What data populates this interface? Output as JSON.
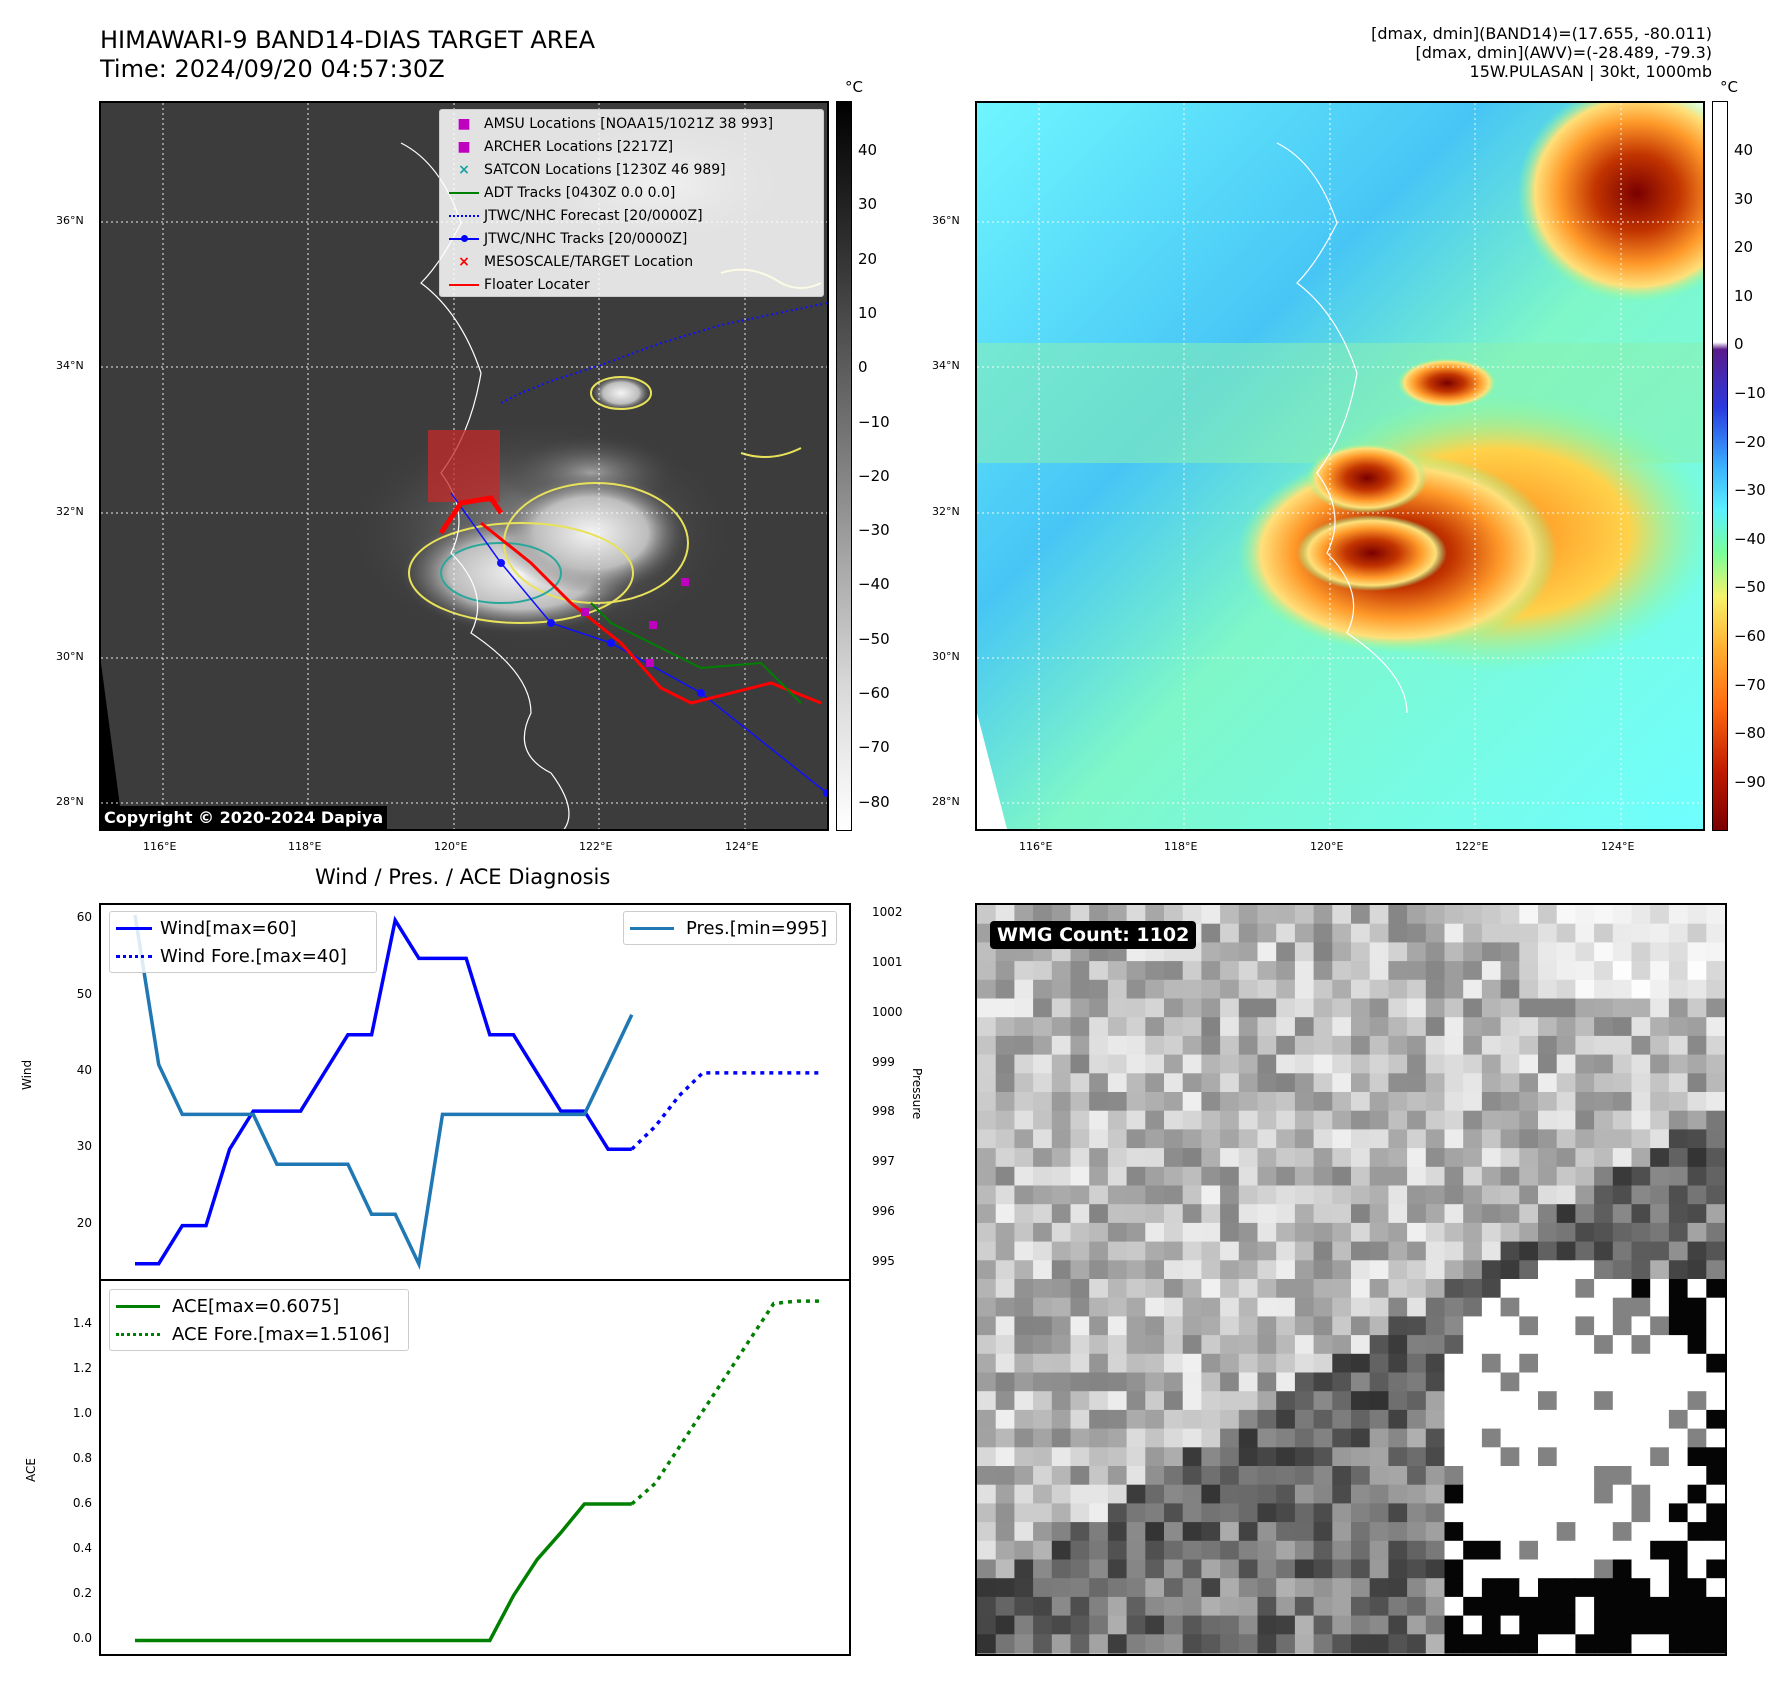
{
  "header": {
    "title_line1": "HIMAWARI-9 BAND14-DIAS TARGET AREA",
    "title_line2": "Time: 2024/09/20 04:57:30Z",
    "right_line1": "[dmax, dmin](BAND14)=(17.655, -80.011)",
    "right_line2": "[dmax, dmin](AWV)=(-28.489, -79.3)",
    "right_line3": "15W.PULASAN | 30kt, 1000mb"
  },
  "map": {
    "lat_labels": [
      "36°N",
      "34°N",
      "32°N",
      "30°N",
      "28°N"
    ],
    "lon_labels": [
      "116°E",
      "118°E",
      "120°E",
      "122°E",
      "124°E"
    ],
    "copyright": "Copyright © 2020-2024 Dapiya"
  },
  "legend_map": [
    {
      "label": "AMSU Locations [NOAA15/1021Z 38 993]",
      "color": "#bf00bf",
      "kind": "square"
    },
    {
      "label": "ARCHER Locations [2217Z]",
      "color": "#bf00bf",
      "kind": "square"
    },
    {
      "label": "SATCON Locations [1230Z 46 989]",
      "color": "#17a2a2",
      "kind": "x"
    },
    {
      "label": "ADT Tracks [0430Z 0.0 0.0]",
      "color": "#008000",
      "kind": "line"
    },
    {
      "label": "JTWC/NHC Forecast [20/0000Z]",
      "color": "#0000ff",
      "kind": "dotted"
    },
    {
      "label": "JTWC/NHC Tracks [20/0000Z]",
      "color": "#0000ff",
      "kind": "line-dot"
    },
    {
      "label": "MESOSCALE/TARGET Location",
      "color": "#ff0000",
      "kind": "x"
    },
    {
      "label": "Floater Locater",
      "color": "#ff0000",
      "kind": "line"
    }
  ],
  "colorbar_gray": {
    "unit": "°C",
    "ticks": [
      "40",
      "30",
      "20",
      "10",
      "0",
      "−10",
      "−20",
      "−30",
      "−40",
      "−50",
      "−60",
      "−70",
      "−80"
    ]
  },
  "colorbar_awv": {
    "unit": "°C",
    "ticks": [
      "40",
      "30",
      "20",
      "10",
      "0",
      "−10",
      "−20",
      "−30",
      "−40",
      "−50",
      "−60",
      "−70",
      "−80",
      "−90"
    ]
  },
  "wmg": {
    "label": "WMG Count: 1102"
  },
  "chart_data": [
    {
      "type": "line",
      "title": "Wind / Pres. / ACE Diagnosis",
      "ylabel": "Wind",
      "ylabel_right": "Pressure",
      "ylim": [
        13,
        62
      ],
      "ylim_right": [
        994.7,
        1002.2
      ],
      "yticks": [
        20,
        30,
        40,
        50,
        60
      ],
      "yticks_right": [
        995,
        996,
        997,
        998,
        999,
        1000,
        1001,
        1002
      ],
      "series": [
        {
          "name": "Wind[max=60]",
          "color": "#0000ff",
          "style": "solid",
          "x": [
            0,
            1,
            2,
            3,
            4,
            5,
            6,
            7,
            8,
            9,
            10,
            11,
            12,
            13,
            14,
            15,
            16,
            17,
            18,
            19,
            20,
            21
          ],
          "values": [
            15,
            15,
            20,
            20,
            30,
            35,
            35,
            35,
            40,
            45,
            45,
            60,
            55,
            55,
            55,
            45,
            45,
            40,
            35,
            35,
            30,
            30
          ]
        },
        {
          "name": "Wind Fore.[max=40]",
          "color": "#0000ff",
          "style": "dotted",
          "x": [
            21,
            22,
            23,
            24,
            25,
            26,
            27,
            28,
            29
          ],
          "values": [
            30,
            33,
            37,
            40,
            40,
            40,
            40,
            40,
            40
          ]
        },
        {
          "name": "Pres.[min=995]",
          "color": "#1f77b4",
          "style": "solid",
          "axis": "right",
          "x": [
            0,
            1,
            2,
            3,
            4,
            5,
            6,
            7,
            8,
            9,
            10,
            11,
            12,
            13,
            14,
            15,
            16,
            17,
            18,
            19,
            20,
            21
          ],
          "values": [
            1002,
            999,
            998,
            998,
            998,
            998,
            997,
            997,
            997,
            997,
            996,
            996,
            995,
            998,
            998,
            998,
            998,
            998,
            998,
            998,
            999,
            1000
          ]
        }
      ]
    },
    {
      "type": "line",
      "ylabel": "ACE",
      "ylim": [
        -0.06,
        1.6
      ],
      "yticks": [
        "0.0",
        "0.2",
        "0.4",
        "0.6",
        "0.8",
        "1.0",
        "1.2",
        "1.4"
      ],
      "series": [
        {
          "name": "ACE[max=0.6075]",
          "color": "#008000",
          "style": "solid",
          "x": [
            0,
            1,
            2,
            3,
            4,
            5,
            6,
            7,
            8,
            9,
            10,
            11,
            12,
            13,
            14,
            15,
            16,
            17,
            18,
            19,
            20,
            21
          ],
          "values": [
            0,
            0,
            0,
            0,
            0,
            0,
            0,
            0,
            0,
            0,
            0,
            0,
            0,
            0,
            0,
            0,
            0.2,
            0.36,
            0.48,
            0.6075,
            0.6075,
            0.6075
          ]
        },
        {
          "name": "ACE Fore.[max=1.5106]",
          "color": "#008000",
          "style": "dotted",
          "x": [
            21,
            22,
            23,
            24,
            25,
            26,
            27,
            28,
            29
          ],
          "values": [
            0.6075,
            0.7,
            0.86,
            1.02,
            1.18,
            1.34,
            1.5,
            1.5106,
            1.5106
          ]
        }
      ]
    }
  ]
}
